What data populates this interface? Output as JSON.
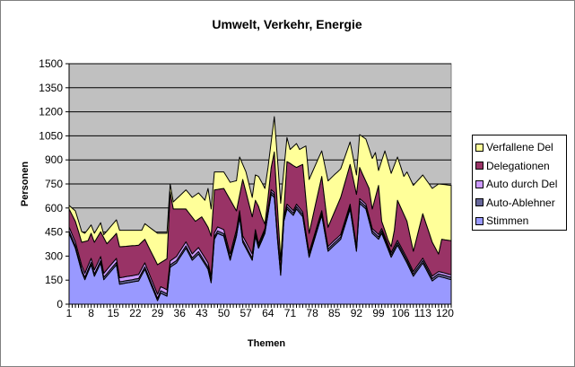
{
  "chart_data": {
    "type": "area",
    "stacked": true,
    "title": "Umwelt, Verkehr, Energie",
    "xlabel": "Themen",
    "ylabel": "Personen",
    "ylim": [
      0,
      1500
    ],
    "yticks": [
      0,
      150,
      300,
      450,
      600,
      750,
      900,
      1050,
      1200,
      1350,
      1500
    ],
    "xtick_labels": [
      "1",
      "8",
      "15",
      "22",
      "29",
      "36",
      "43",
      "50",
      "57",
      "64",
      "71",
      "78",
      "85",
      "92",
      "99",
      "106",
      "113",
      "120"
    ],
    "categories_range": [
      1,
      122
    ],
    "grid": "horizontal",
    "legend_position": "right",
    "plot_background": "#C0C0C0",
    "series": [
      {
        "name": "Stimmen",
        "color": "#9999FF",
        "values": [
          442,
          395,
          349,
          275,
          202,
          153,
          200,
          246,
          174,
          215,
          257,
          153,
          176,
          200,
          223,
          246,
          125,
          128,
          132,
          135,
          138,
          142,
          145,
          182,
          218,
          169,
          120,
          71,
          22,
          69,
          60,
          50,
          230,
          244,
          257,
          288,
          318,
          349,
          312,
          274,
          294,
          313,
          281,
          250,
          218,
          134,
          405,
          442,
          434,
          425,
          350,
          274,
          350,
          425,
          543,
          386,
          349,
          311,
          274,
          425,
          349,
          395,
          442,
          563,
          685,
          666,
          400,
          181,
          517,
          594,
          574,
          554,
          594,
          570,
          545,
          419,
          293,
          358,
          423,
          489,
          554,
          442,
          330,
          349,
          368,
          386,
          405,
          468,
          531,
          594,
          462,
          330,
          629,
          612,
          594,
          518,
          442,
          424,
          405,
          442,
          392,
          343,
          293,
          331,
          368,
          331,
          294,
          257,
          216,
          174,
          202,
          229,
          257,
          220,
          182,
          145,
          160,
          174,
          169,
          164,
          158,
          153
        ]
      },
      {
        "name": "Auto-Ablehner",
        "color": "#666699",
        "values": [
          15,
          15,
          15,
          15,
          15,
          15,
          15,
          15,
          15,
          15,
          15,
          15,
          15,
          15,
          15,
          15,
          15,
          15,
          15,
          15,
          15,
          15,
          15,
          15,
          15,
          15,
          15,
          15,
          15,
          15,
          15,
          15,
          15,
          15,
          15,
          15,
          15,
          15,
          15,
          15,
          15,
          15,
          15,
          15,
          15,
          15,
          15,
          15,
          15,
          15,
          15,
          15,
          15,
          15,
          15,
          15,
          15,
          15,
          15,
          15,
          15,
          15,
          15,
          15,
          15,
          15,
          15,
          15,
          15,
          15,
          15,
          15,
          15,
          15,
          15,
          15,
          15,
          15,
          15,
          15,
          15,
          15,
          15,
          15,
          15,
          15,
          15,
          15,
          15,
          15,
          15,
          15,
          15,
          15,
          15,
          15,
          15,
          15,
          15,
          15,
          15,
          15,
          15,
          15,
          15,
          15,
          15,
          15,
          15,
          15,
          15,
          15,
          15,
          15,
          15,
          15,
          15,
          15,
          15,
          15,
          15,
          15
        ]
      },
      {
        "name": "Auto durch Del",
        "color": "#CC99FF",
        "values": [
          25,
          25,
          25,
          25,
          25,
          25,
          25,
          25,
          25,
          25,
          25,
          25,
          25,
          25,
          25,
          25,
          25,
          25,
          25,
          25,
          25,
          25,
          25,
          25,
          25,
          25,
          25,
          25,
          25,
          25,
          25,
          25,
          25,
          25,
          25,
          25,
          25,
          25,
          25,
          25,
          25,
          25,
          25,
          25,
          25,
          25,
          25,
          25,
          25,
          25,
          25,
          25,
          25,
          25,
          25,
          25,
          25,
          25,
          25,
          25,
          15,
          15,
          15,
          15,
          15,
          15,
          15,
          15,
          15,
          15,
          15,
          15,
          15,
          15,
          15,
          15,
          15,
          15,
          15,
          15,
          15,
          15,
          15,
          15,
          15,
          15,
          15,
          15,
          15,
          15,
          15,
          15,
          15,
          15,
          15,
          15,
          15,
          15,
          15,
          15,
          15,
          15,
          15,
          15,
          15,
          15,
          15,
          15,
          15,
          15,
          15,
          15,
          15,
          15,
          15,
          15,
          15,
          15,
          15,
          15,
          15,
          15
        ]
      },
      {
        "name": "Delegationen",
        "color": "#993366",
        "values": [
          112,
          121,
          128,
          137,
          144,
          198,
          156,
          156,
          172,
          164,
          155,
          222,
          161,
          159,
          157,
          156,
          193,
          192,
          189,
          188,
          187,
          184,
          183,
          165,
          147,
          156,
          166,
          175,
          184,
          150,
          171,
          194,
          430,
          310,
          297,
          266,
          236,
          205,
          216,
          229,
          183,
          178,
          224,
          223,
          222,
          251,
          268,
          234,
          245,
          257,
          297,
          338,
          227,
          117,
          97,
          352,
          311,
          272,
          231,
          183,
          231,
          120,
          28,
          74,
          138,
          254,
          170,
          63,
          35,
          266,
          274,
          281,
          229,
          263,
          297,
          208,
          119,
          143,
          167,
          189,
          213,
          167,
          120,
          148,
          175,
          204,
          231,
          237,
          242,
          248,
          287,
          325,
          194,
          167,
          142,
          174,
          122,
          214,
          306,
          45,
          38,
          27,
          37,
          100,
          250,
          243,
          237,
          230,
          178,
          126,
          176,
          228,
          278,
          255,
          234,
          211,
          160,
          109,
          206,
          208,
          211,
          213
        ]
      },
      {
        "name": "Verfallene Del",
        "color": "#FFFF99",
        "values": [
          22,
          43,
          65,
          65,
          66,
          51,
          72,
          52,
          56,
          56,
          56,
          18,
          79,
          81,
          83,
          84,
          103,
          101,
          100,
          98,
          96,
          95,
          93,
          74,
          97,
          122,
          146,
          171,
          196,
          183,
          171,
          158,
          50,
          44,
          63,
          81,
          100,
          119,
          122,
          123,
          163,
          163,
          126,
          135,
          242,
          169,
          112,
          109,
          106,
          103,
          106,
          108,
          148,
          188,
          238,
          94,
          125,
          123,
          121,
          158,
          187,
          215,
          222,
          186,
          159,
          220,
          300,
          355,
          253,
          150,
          87,
          119,
          149,
          102,
          104,
          330,
          336,
          292,
          247,
          204,
          159,
          224,
          289,
          261,
          234,
          205,
          178,
          165,
          153,
          140,
          130,
          121,
          205,
          235,
          264,
          248,
          315,
          278,
          93,
          378,
          496,
          486,
          456,
          406,
          270,
          254,
          236,
          308,
          359,
          411,
          355,
          297,
          241,
          273,
          304,
          336,
          386,
          437,
          343,
          344,
          344,
          345
        ]
      }
    ]
  },
  "legend": {
    "items": [
      {
        "label": "Verfallene Del",
        "color": "#FFFF99"
      },
      {
        "label": "Delegationen",
        "color": "#993366"
      },
      {
        "label": "Auto durch Del",
        "color": "#CC99FF"
      },
      {
        "label": "Auto-Ablehner",
        "color": "#666699"
      },
      {
        "label": "Stimmen",
        "color": "#9999FF"
      }
    ]
  }
}
